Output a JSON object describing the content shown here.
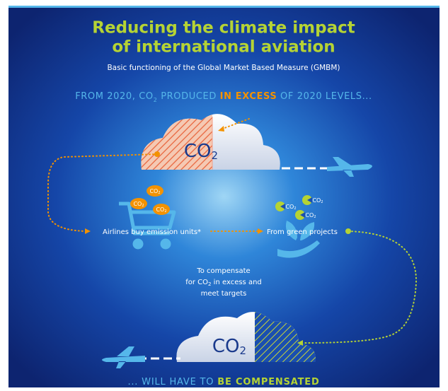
{
  "header": {
    "title": [
      "Reducing the climate impact",
      "of international aviation"
    ],
    "subtitle": "Basic functioning of the Global Market Based Measure (GMBM)"
  },
  "banner_top": [
    "FROM 2020, CO",
    "2",
    " PRODUCED ",
    "IN EXCESS",
    " OF 2020 LEVELS..."
  ],
  "clouds": [
    {
      "text": "CO",
      "sub": "2"
    },
    {
      "text": "CO",
      "sub": "2"
    }
  ],
  "coins": [
    {
      "text": "CO",
      "sub": "2"
    },
    {
      "text": "CO",
      "sub": "2"
    },
    {
      "text": "CO",
      "sub": "2"
    },
    {
      "text": "CO",
      "sub": "2"
    },
    {
      "text": "CO",
      "sub": "2"
    },
    {
      "text": "CO",
      "sub": "2"
    }
  ],
  "labels": {
    "airlines": "Airlines buy emission units*",
    "green": "From green projects",
    "compensate": [
      "To compensate",
      "for CO",
      "2",
      " in excess and",
      "meet targets"
    ]
  },
  "banner_bottom": [
    "... WILL HAVE TO ",
    "BE COMPENSATED"
  ]
}
